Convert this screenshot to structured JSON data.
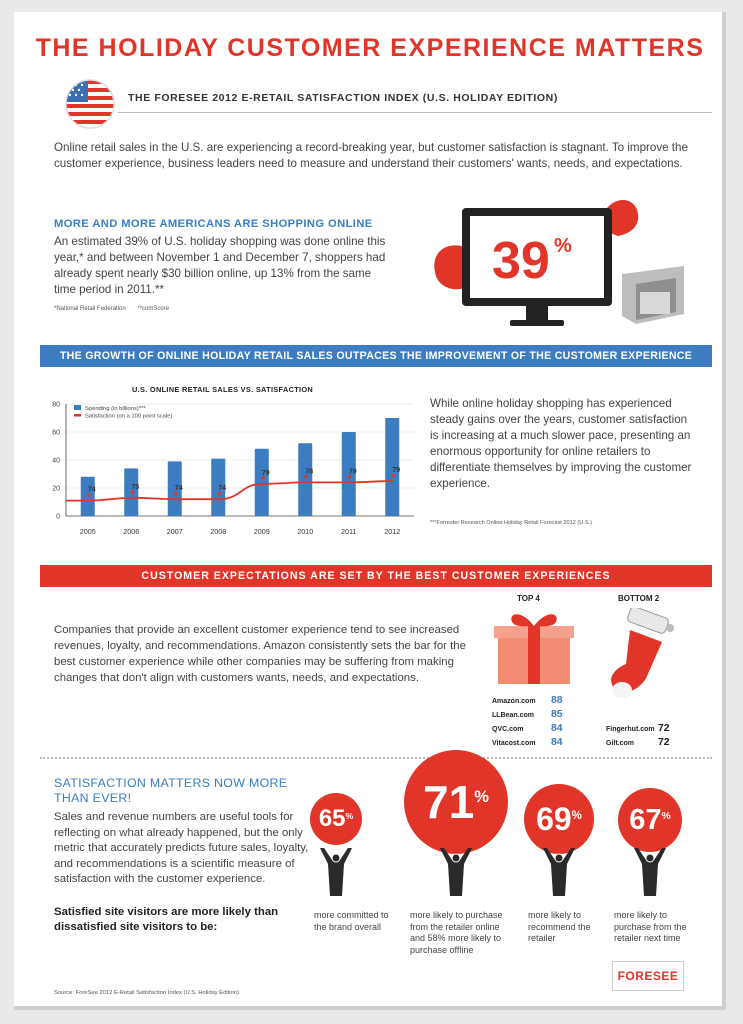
{
  "header": {
    "title": "THE HOLIDAY CUSTOMER EXPERIENCE MATTERS",
    "subtitle": "THE FORESEE 2012 E-RETAIL SATISFACTION INDEX (U.S. HOLIDAY EDITION)",
    "flag_icon": "us-flag-icon"
  },
  "intro": "Online retail sales in the U.S. are experiencing a record-breaking year, but customer satisfaction is stagnant. To improve the customer experience, business leaders need to measure and understand their customers' wants, needs, and expectations.",
  "section1": {
    "heading": "MORE AND MORE AMERICANS ARE SHOPPING ONLINE",
    "body": "An estimated 39% of U.S. holiday shopping was done online this year,* and between November 1 and December 7, shoppers had already spent nearly $30 billion online, up 13% from the same time period in 2011.**",
    "footnote1": "*National Retail Federation",
    "footnote2": "**comScore",
    "big_stat": "39",
    "big_stat_unit": "%",
    "colors": {
      "red": "#e2352a",
      "monitor": "#222222"
    }
  },
  "section2": {
    "band": "THE GROWTH OF ONLINE HOLIDAY RETAIL SALES OUTPACES THE IMPROVEMENT OF THE CUSTOMER EXPERIENCE",
    "chart_title": "U.S. ONLINE RETAIL SALES VS. SATISFACTION",
    "text": "While online holiday shopping has experienced steady gains over the years, customer satisfaction is increasing at a much slower pace, presenting an enormous opportunity for online retailers to differentiate themselves by improving the customer experience.",
    "footnote": "***Forrester Research Online Holiday Retail Forecast 2012 (U.S.)"
  },
  "chart_data": {
    "type": "bar",
    "title": "U.S. ONLINE RETAIL SALES VS. SATISFACTION",
    "categories": [
      "2005",
      "2006",
      "2007",
      "2008",
      "2009",
      "2010",
      "2011",
      "2012"
    ],
    "ylim": [
      0,
      80
    ],
    "yticks": [
      "0",
      "20",
      "40",
      "60",
      "80"
    ],
    "grid": true,
    "legend_position": "top-left",
    "series": [
      {
        "name": "Spending (in billions)***",
        "kind": "bar",
        "color": "#3b7dc0",
        "values": [
          28,
          34,
          39,
          41,
          48,
          52,
          60,
          70
        ]
      },
      {
        "name": "Satisfaction (on a 100 point scale)",
        "kind": "line",
        "color": "#e2352a",
        "values": [
          74,
          75,
          74,
          74,
          79,
          78,
          79,
          79
        ],
        "line_level_on_axis": [
          11,
          13,
          12,
          12,
          23,
          24,
          24,
          25
        ]
      }
    ]
  },
  "section3": {
    "band": "CUSTOMER EXPECTATIONS ARE SET BY THE BEST CUSTOMER EXPERIENCES",
    "text": "Companies that provide an excellent customer experience tend to see increased revenues, loyalty, and recommendations. Amazon consistently sets the bar for the best customer experience while other companies may be suffering from making changes that don't align with customers wants, needs, and expectations.",
    "top_label": "TOP 4",
    "bottom_label": "BOTTOM 2",
    "top": [
      {
        "name": "Amazon.com",
        "score": "88"
      },
      {
        "name": "LLBean.com",
        "score": "85"
      },
      {
        "name": "QVC.com",
        "score": "84"
      },
      {
        "name": "Vitacost.com",
        "score": "84"
      }
    ],
    "bottom": [
      {
        "name": "Fingerhut.com",
        "score": "72"
      },
      {
        "name": "Gilt.com",
        "score": "72"
      }
    ]
  },
  "section4": {
    "heading": "SATISFACTION MATTERS NOW MORE THAN EVER!",
    "body": "Sales and revenue numbers are useful tools for reflecting on what already happened, but the only metric that accurately predicts future sales, loyalty, and recommendations is a scientific measure of satisfaction with the customer experience.",
    "strong": "Satisfied site visitors are more likely than dissatisfied site visitors to be:",
    "stats": [
      {
        "value": "65",
        "unit": "%",
        "text": "more committed to the brand overall"
      },
      {
        "value": "71",
        "unit": "%",
        "text": "more likely to purchase from the retailer online and 58% more likely to purchase offline"
      },
      {
        "value": "69",
        "unit": "%",
        "text": "more likely to recommend the retailer"
      },
      {
        "value": "67",
        "unit": "%",
        "text": "more likely to purchase from the retailer next time"
      }
    ]
  },
  "footer": {
    "source": "Source: ForeSee 2012 E-Retail Satisfaction Index (U.S. Holiday Edition).",
    "logo": "FORESEE"
  }
}
